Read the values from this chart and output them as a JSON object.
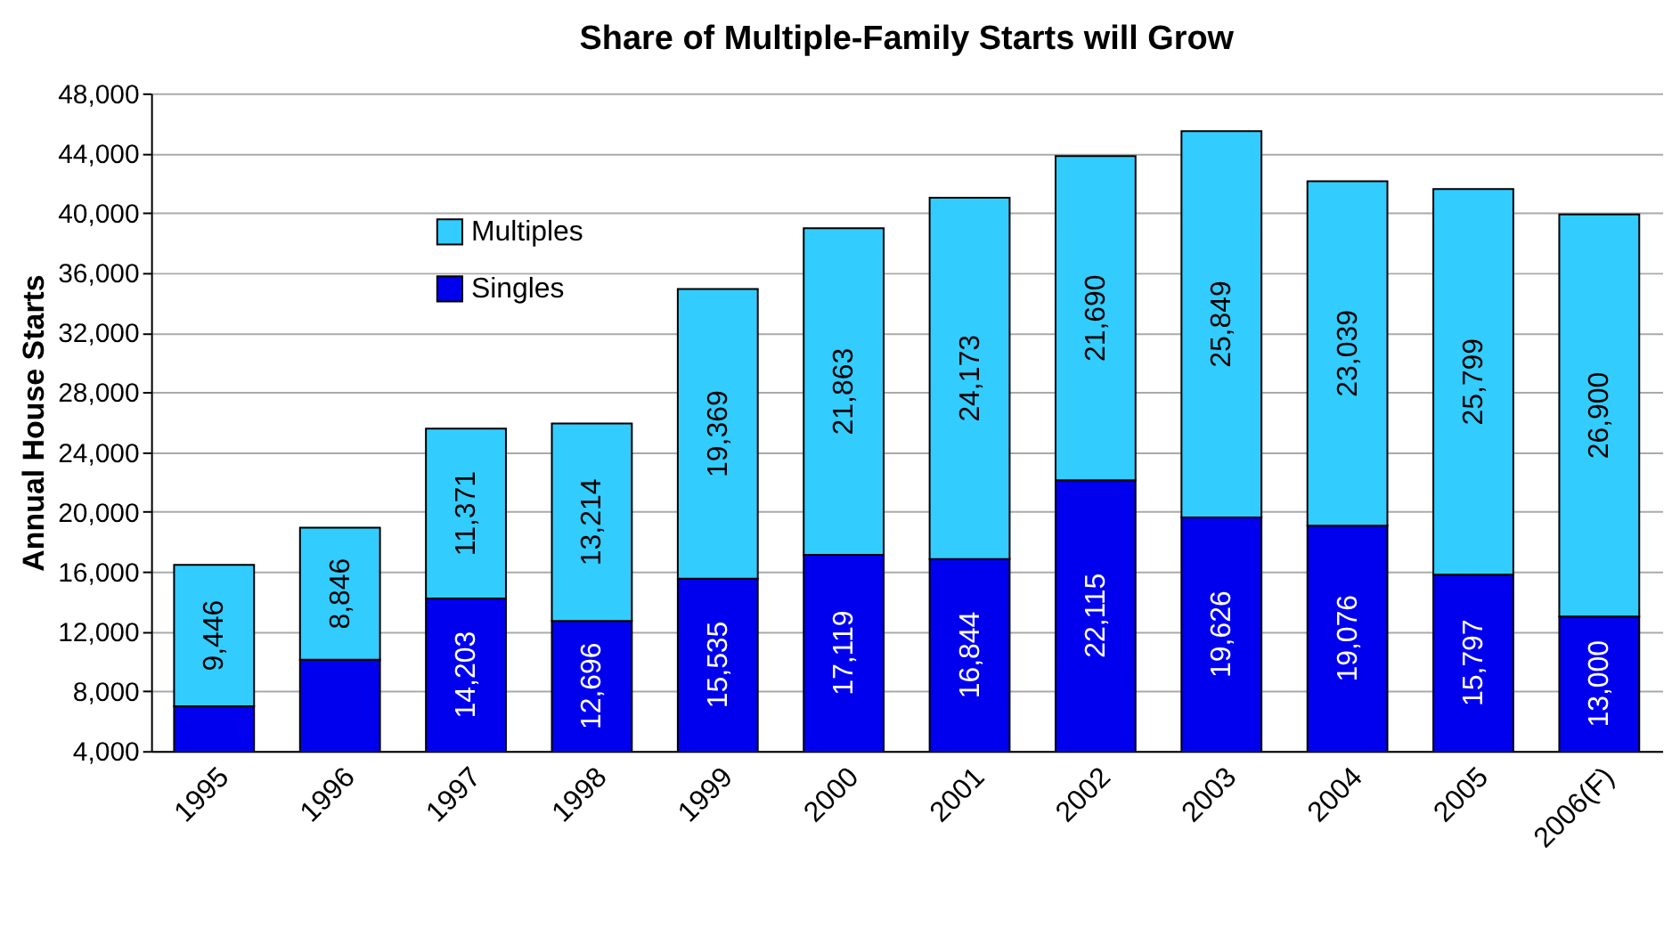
{
  "chart_data": {
    "type": "bar",
    "title": "Share of Multiple-Family Starts will Grow",
    "ylabel": "Annual House Starts",
    "categories": [
      "1995",
      "1996",
      "1997",
      "1998",
      "1999",
      "2000",
      "2001",
      "2002",
      "2003",
      "2004",
      "2005",
      "2006(F)"
    ],
    "stacked": true,
    "series": [
      {
        "name": "Singles",
        "color": "#0000ee",
        "values": [
          7000,
          10100,
          14203,
          12696,
          15535,
          17119,
          16844,
          22115,
          19626,
          19076,
          15797,
          13000
        ],
        "value_labels": [
          null,
          null,
          "14,203",
          "12,696",
          "15,535",
          "17,119",
          "16,844",
          "22,115",
          "19,626",
          "19,076",
          "15,797",
          "13,000"
        ]
      },
      {
        "name": "Multiples",
        "color": "#33ccff",
        "values": [
          9446,
          8846,
          11371,
          13214,
          19369,
          21863,
          24173,
          21690,
          25849,
          23039,
          25799,
          26900
        ],
        "value_labels": [
          "9,446",
          "8,846",
          "11,371",
          "13,214",
          "19,369",
          "21,863",
          "24,173",
          "21,690",
          "25,849",
          "23,039",
          "25,799",
          "26,900"
        ]
      }
    ],
    "ylim": [
      4000,
      48000
    ],
    "yticks": [
      {
        "value": 4000,
        "label": "4,000"
      },
      {
        "value": 8000,
        "label": "8,000"
      },
      {
        "value": 12000,
        "label": "12,000"
      },
      {
        "value": 16000,
        "label": "16,000"
      },
      {
        "value": 20000,
        "label": "20,000"
      },
      {
        "value": 24000,
        "label": "24,000"
      },
      {
        "value": 28000,
        "label": "28,000"
      },
      {
        "value": 32000,
        "label": "32,000"
      },
      {
        "value": 36000,
        "label": "36,000"
      },
      {
        "value": 40000,
        "label": "40,000"
      },
      {
        "value": 44000,
        "label": "44,000"
      },
      {
        "value": 48000,
        "label": "48,000"
      }
    ],
    "grid": "y",
    "legend": "top left"
  }
}
